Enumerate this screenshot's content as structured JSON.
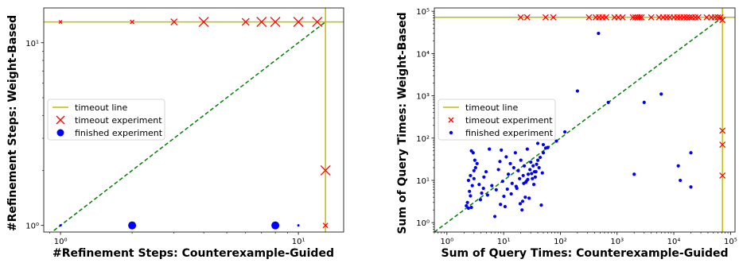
{
  "chart_data": [
    {
      "type": "scatter",
      "xlabel": "#Refinement Steps: Counterexample-Guided",
      "ylabel": "#Refinement Steps: Weight-Based",
      "xscale": "log",
      "yscale": "log",
      "xlim": [
        0.85,
        15.5
      ],
      "ylim": [
        0.92,
        15.5
      ],
      "xticks": [
        {
          "v": 1,
          "label": "10⁰"
        },
        {
          "v": 10,
          "label": "10¹"
        }
      ],
      "yticks": [
        {
          "v": 1,
          "label": "10⁰"
        },
        {
          "v": 10,
          "label": "10¹"
        }
      ],
      "timeout": 13.0,
      "diagonal": [
        [
          0.85,
          0.85
        ],
        [
          13.0,
          13.0
        ]
      ],
      "legend": {
        "position": "center-left",
        "entries": [
          "timeout line",
          "timeout experiment",
          "finished experiment"
        ]
      },
      "colors": {
        "timeout_line": "#bfbf00",
        "diagonal": "#008000",
        "timeout_marker": "#ff0000",
        "finished_marker": "#0000ff"
      },
      "series": [
        {
          "name": "timeout experiment",
          "marker": "x",
          "points": [
            {
              "x": 1.0,
              "y": 13.0,
              "s": 2
            },
            {
              "x": 2.0,
              "y": 13.0,
              "s": 2.5
            },
            {
              "x": 3.0,
              "y": 13.0,
              "s": 4
            },
            {
              "x": 4.0,
              "y": 13.0,
              "s": 6
            },
            {
              "x": 6.0,
              "y": 13.0,
              "s": 4.5
            },
            {
              "x": 7.0,
              "y": 13.0,
              "s": 6
            },
            {
              "x": 8.0,
              "y": 13.0,
              "s": 6
            },
            {
              "x": 10.0,
              "y": 13.0,
              "s": 6
            },
            {
              "x": 12.0,
              "y": 13.0,
              "s": 6
            },
            {
              "x": 13.0,
              "y": 2.0,
              "s": 6
            },
            {
              "x": 13.0,
              "y": 1.0,
              "s": 3
            }
          ]
        },
        {
          "name": "finished experiment",
          "marker": "o",
          "points": [
            {
              "x": 1.0,
              "y": 1.0,
              "r": 1.5
            },
            {
              "x": 2.0,
              "y": 1.0,
              "r": 5
            },
            {
              "x": 8.0,
              "y": 1.0,
              "r": 5
            },
            {
              "x": 10.0,
              "y": 1.0,
              "r": 1.5
            }
          ]
        }
      ]
    },
    {
      "type": "scatter",
      "xlabel": "Sum of Query Times: Counterexample-Guided",
      "ylabel": "Sum of Query Times: Weight-Based",
      "xscale": "log",
      "yscale": "log",
      "xlim": [
        0.6,
        120000
      ],
      "ylim": [
        0.6,
        120000
      ],
      "xticks": [
        {
          "v": 1,
          "label": "10⁰"
        },
        {
          "v": 10,
          "label": "10¹"
        },
        {
          "v": 100,
          "label": "10²"
        },
        {
          "v": 1000,
          "label": "10³"
        },
        {
          "v": 10000,
          "label": "10⁴"
        },
        {
          "v": 100000,
          "label": "10⁵"
        }
      ],
      "yticks": [
        {
          "v": 1,
          "label": "10⁰"
        },
        {
          "v": 10,
          "label": "10¹"
        },
        {
          "v": 100,
          "label": "10²"
        },
        {
          "v": 1000,
          "label": "10³"
        },
        {
          "v": 10000,
          "label": "10⁴"
        },
        {
          "v": 100000,
          "label": "10⁵"
        }
      ],
      "timeout": 72000,
      "diagonal": [
        [
          0.6,
          0.6
        ],
        [
          72000,
          72000
        ]
      ],
      "legend": {
        "position": "center-left",
        "entries": [
          "timeout line",
          "timeout experiment",
          "finished experiment"
        ]
      },
      "colors": {
        "timeout_line": "#bfbf00",
        "diagonal": "#008000",
        "timeout_marker": "#ff0000",
        "finished_marker": "#0000ff"
      },
      "series": [
        {
          "name": "timeout experiment",
          "marker": "x",
          "points": [
            {
              "x": 20,
              "y": 72000
            },
            {
              "x": 26,
              "y": 72000
            },
            {
              "x": 55,
              "y": 72000
            },
            {
              "x": 75,
              "y": 72000
            },
            {
              "x": 320,
              "y": 72000
            },
            {
              "x": 420,
              "y": 72000
            },
            {
              "x": 480,
              "y": 72000
            },
            {
              "x": 550,
              "y": 72000
            },
            {
              "x": 640,
              "y": 72000
            },
            {
              "x": 900,
              "y": 72000
            },
            {
              "x": 1050,
              "y": 72000
            },
            {
              "x": 1250,
              "y": 72000
            },
            {
              "x": 1900,
              "y": 72000
            },
            {
              "x": 2100,
              "y": 72000
            },
            {
              "x": 2300,
              "y": 72000
            },
            {
              "x": 2500,
              "y": 72000
            },
            {
              "x": 2700,
              "y": 72000
            },
            {
              "x": 4000,
              "y": 72000
            },
            {
              "x": 5500,
              "y": 72000
            },
            {
              "x": 6500,
              "y": 72000
            },
            {
              "x": 7500,
              "y": 72000
            },
            {
              "x": 8500,
              "y": 72000
            },
            {
              "x": 10000,
              "y": 72000
            },
            {
              "x": 11500,
              "y": 72000
            },
            {
              "x": 13000,
              "y": 72000
            },
            {
              "x": 15000,
              "y": 72000
            },
            {
              "x": 17000,
              "y": 72000
            },
            {
              "x": 19000,
              "y": 72000
            },
            {
              "x": 21000,
              "y": 72000
            },
            {
              "x": 24000,
              "y": 72000
            },
            {
              "x": 27000,
              "y": 72000
            },
            {
              "x": 38000,
              "y": 72000
            },
            {
              "x": 46000,
              "y": 72000
            },
            {
              "x": 53000,
              "y": 72000
            },
            {
              "x": 60000,
              "y": 72000
            },
            {
              "x": 66000,
              "y": 72000
            },
            {
              "x": 72000,
              "y": 62000
            },
            {
              "x": 72000,
              "y": 150
            },
            {
              "x": 72000,
              "y": 70
            },
            {
              "x": 72000,
              "y": 13
            }
          ]
        },
        {
          "name": "finished experiment",
          "marker": "o",
          "points": [
            {
              "x": 470,
              "y": 30000
            },
            {
              "x": 200,
              "y": 1300
            },
            {
              "x": 700,
              "y": 700
            },
            {
              "x": 3000,
              "y": 700
            },
            {
              "x": 6000,
              "y": 1100
            },
            {
              "x": 120,
              "y": 140
            },
            {
              "x": 85,
              "y": 85
            },
            {
              "x": 60,
              "y": 60
            },
            {
              "x": 50,
              "y": 70
            },
            {
              "x": 40,
              "y": 75
            },
            {
              "x": 2000,
              "y": 14
            },
            {
              "x": 12000,
              "y": 22
            },
            {
              "x": 13000,
              "y": 10
            },
            {
              "x": 20000,
              "y": 45
            },
            {
              "x": 20000,
              "y": 7
            },
            {
              "x": 2.2,
              "y": 2.5
            },
            {
              "x": 2.4,
              "y": 2.2
            },
            {
              "x": 2.7,
              "y": 2.3
            },
            {
              "x": 2.3,
              "y": 3.0
            },
            {
              "x": 2.6,
              "y": 4.3
            },
            {
              "x": 2.5,
              "y": 5.5
            },
            {
              "x": 2.8,
              "y": 7.5
            },
            {
              "x": 2.4,
              "y": 10
            },
            {
              "x": 2.6,
              "y": 13
            },
            {
              "x": 3.0,
              "y": 17
            },
            {
              "x": 3.2,
              "y": 20
            },
            {
              "x": 3.4,
              "y": 25
            },
            {
              "x": 3.1,
              "y": 30
            },
            {
              "x": 2.9,
              "y": 45
            },
            {
              "x": 2.7,
              "y": 50
            },
            {
              "x": 3.0,
              "y": 11
            },
            {
              "x": 3.7,
              "y": 8
            },
            {
              "x": 4.1,
              "y": 5
            },
            {
              "x": 4.4,
              "y": 6.5
            },
            {
              "x": 3.9,
              "y": 3.5
            },
            {
              "x": 4.5,
              "y": 12
            },
            {
              "x": 4.9,
              "y": 16
            },
            {
              "x": 5.2,
              "y": 4.5
            },
            {
              "x": 5.6,
              "y": 55
            },
            {
              "x": 6.2,
              "y": 7.5
            },
            {
              "x": 7.0,
              "y": 1.4
            },
            {
              "x": 7.4,
              "y": 6
            },
            {
              "x": 8.1,
              "y": 18
            },
            {
              "x": 8.6,
              "y": 28
            },
            {
              "x": 9.1,
              "y": 52
            },
            {
              "x": 9.6,
              "y": 9.5
            },
            {
              "x": 10.1,
              "y": 4.2
            },
            {
              "x": 10.6,
              "y": 2.4
            },
            {
              "x": 11.1,
              "y": 36
            },
            {
              "x": 12.1,
              "y": 14
            },
            {
              "x": 13.1,
              "y": 25
            },
            {
              "x": 14.1,
              "y": 8.5
            },
            {
              "x": 15.1,
              "y": 20
            },
            {
              "x": 16.1,
              "y": 45
            },
            {
              "x": 17.1,
              "y": 6.5
            },
            {
              "x": 18.1,
              "y": 17
            },
            {
              "x": 19.1,
              "y": 11
            },
            {
              "x": 20.1,
              "y": 30
            },
            {
              "x": 21.1,
              "y": 2.0
            },
            {
              "x": 22.1,
              "y": 13
            },
            {
              "x": 23.1,
              "y": 22
            },
            {
              "x": 24.1,
              "y": 4.0
            },
            {
              "x": 25.1,
              "y": 9.5
            },
            {
              "x": 26.1,
              "y": 55
            },
            {
              "x": 27.1,
              "y": 14
            },
            {
              "x": 28.1,
              "y": 3.8
            },
            {
              "x": 29.1,
              "y": 18
            },
            {
              "x": 30.1,
              "y": 27
            },
            {
              "x": 32.1,
              "y": 11
            },
            {
              "x": 34.1,
              "y": 8
            },
            {
              "x": 35.1,
              "y": 16
            },
            {
              "x": 36.1,
              "y": 12
            },
            {
              "x": 38.1,
              "y": 24
            },
            {
              "x": 40.1,
              "y": 30
            },
            {
              "x": 42.1,
              "y": 20
            },
            {
              "x": 44.1,
              "y": 35
            },
            {
              "x": 46.1,
              "y": 2.6
            },
            {
              "x": 48.1,
              "y": 15
            },
            {
              "x": 50.1,
              "y": 45
            },
            {
              "x": 55.1,
              "y": 58
            },
            {
              "x": 60.1,
              "y": 60
            },
            {
              "x": 8.8,
              "y": 2.7
            },
            {
              "x": 11.6,
              "y": 6.2
            },
            {
              "x": 13.6,
              "y": 4.8
            },
            {
              "x": 16.6,
              "y": 7.2
            },
            {
              "x": 19.6,
              "y": 2.8
            },
            {
              "x": 21.6,
              "y": 3.2
            },
            {
              "x": 22.6,
              "y": 8.5
            },
            {
              "x": 24.6,
              "y": 9.0
            },
            {
              "x": 26.6,
              "y": 10.5
            },
            {
              "x": 31.1,
              "y": 14.5
            },
            {
              "x": 33.1,
              "y": 22
            },
            {
              "x": 37.1,
              "y": 16
            }
          ]
        }
      ]
    }
  ]
}
